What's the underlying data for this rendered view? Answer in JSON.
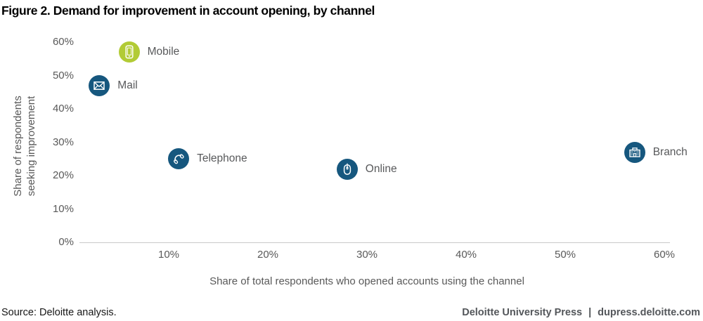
{
  "title": "Figure 2. Demand for improvement in account opening, by channel",
  "chart_data": {
    "type": "scatter",
    "title": "Figure 2. Demand for improvement in account opening, by channel",
    "xlabel": "Share of total respondents who opened accounts using the channel",
    "ylabel": "Share of respondents seeking improvement",
    "ylabel_lines": [
      "Share of respondents",
      "seeking improvement"
    ],
    "xlim": [
      0,
      60
    ],
    "ylim": [
      0,
      60
    ],
    "x_ticks": [
      10,
      20,
      30,
      40,
      50,
      60
    ],
    "y_ticks": [
      0,
      10,
      20,
      30,
      40,
      50,
      60
    ],
    "tick_suffix": "%",
    "grid": false,
    "legend": "none",
    "points": [
      {
        "label": "Mobile",
        "x": 6,
        "y": 57,
        "color": "#b2cb35",
        "icon": "mobile-phone-icon"
      },
      {
        "label": "Mail",
        "x": 3,
        "y": 47,
        "color": "#16577e",
        "icon": "envelope-icon"
      },
      {
        "label": "Telephone",
        "x": 11,
        "y": 25,
        "color": "#16577e",
        "icon": "telephone-icon"
      },
      {
        "label": "Online",
        "x": 28,
        "y": 22,
        "color": "#16577e",
        "icon": "mouse-icon"
      },
      {
        "label": "Branch",
        "x": 57,
        "y": 27,
        "color": "#16577e",
        "icon": "building-icon"
      }
    ]
  },
  "footer": {
    "source": "Source: Deloitte analysis.",
    "publisher": "Deloitte University Press",
    "separator": "|",
    "site": "dupress.deloitte.com"
  },
  "colors": {
    "accent_green": "#b2cb35",
    "accent_blue": "#16577e",
    "axis_line": "#c9c9c9",
    "tick_text": "#595959",
    "point_label_text": "#58595b"
  }
}
